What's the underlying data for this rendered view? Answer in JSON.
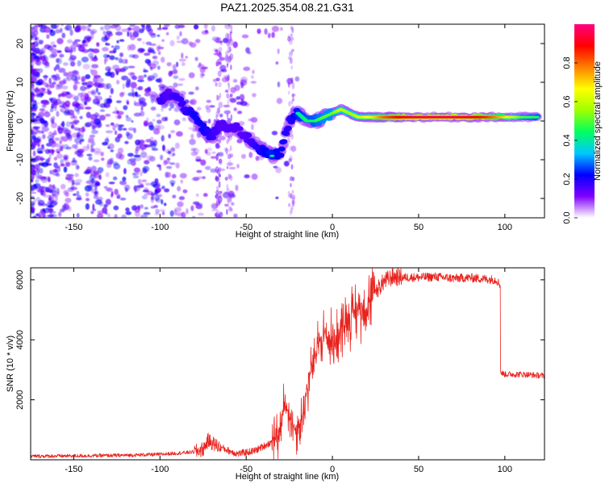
{
  "chart_data": [
    {
      "type": "heatmap",
      "title": "PAZ1.2025.354.08.21.G31",
      "xlabel": "Height of straight line (km)",
      "ylabel": "Frequency (Hz)",
      "xlim": [
        -175,
        123
      ],
      "ylim": [
        -25,
        25
      ],
      "xticks": [
        -150,
        -100,
        -50,
        0,
        50,
        100
      ],
      "yticks": [
        -20,
        -10,
        0,
        10,
        20
      ],
      "colorbar": {
        "label": "Normalized spectral amplitude",
        "range": [
          0,
          1
        ],
        "ticks": [
          0.0,
          0.2,
          0.4,
          0.6,
          0.8
        ],
        "tick_labels": [
          "0.0",
          "0.2",
          "0.4",
          "0.6",
          "0.8"
        ],
        "colormap": [
          "#ffffff",
          "#8000ff",
          "#0000ff",
          "#00c8ff",
          "#00ff60",
          "#a0ff00",
          "#ffff00",
          "#ff8000",
          "#ff0000",
          "#ff0080"
        ]
      },
      "ridge": [
        {
          "x": -100,
          "y": 5,
          "a": 0.3
        },
        {
          "x": -95,
          "y": 7,
          "a": 0.25
        },
        {
          "x": -90,
          "y": 6,
          "a": 0.3
        },
        {
          "x": -85,
          "y": 3,
          "a": 0.3
        },
        {
          "x": -80,
          "y": 1,
          "a": 0.35
        },
        {
          "x": -75,
          "y": -2,
          "a": 0.35
        },
        {
          "x": -70,
          "y": -4,
          "a": 0.3
        },
        {
          "x": -65,
          "y": -1,
          "a": 0.25
        },
        {
          "x": -60,
          "y": -2,
          "a": 0.25
        },
        {
          "x": -55,
          "y": -2,
          "a": 0.25
        },
        {
          "x": -50,
          "y": -4,
          "a": 0.25
        },
        {
          "x": -45,
          "y": -6,
          "a": 0.3
        },
        {
          "x": -40,
          "y": -8,
          "a": 0.35
        },
        {
          "x": -35,
          "y": -9,
          "a": 0.4
        },
        {
          "x": -30,
          "y": -8,
          "a": 0.35
        },
        {
          "x": -25,
          "y": 0,
          "a": 0.3
        },
        {
          "x": -20,
          "y": 2,
          "a": 0.4
        },
        {
          "x": -15,
          "y": 0,
          "a": 0.45
        },
        {
          "x": -10,
          "y": 0,
          "a": 0.45
        },
        {
          "x": -5,
          "y": 1,
          "a": 0.5
        },
        {
          "x": 0,
          "y": 2,
          "a": 0.5
        },
        {
          "x": 5,
          "y": 3,
          "a": 0.6
        },
        {
          "x": 10,
          "y": 2,
          "a": 0.55
        },
        {
          "x": 15,
          "y": 1,
          "a": 0.6
        },
        {
          "x": 20,
          "y": 1,
          "a": 0.65
        },
        {
          "x": 25,
          "y": 1,
          "a": 0.7
        },
        {
          "x": 30,
          "y": 1,
          "a": 0.8
        },
        {
          "x": 35,
          "y": 1,
          "a": 0.85
        },
        {
          "x": 40,
          "y": 1,
          "a": 0.9
        },
        {
          "x": 50,
          "y": 1,
          "a": 0.95
        },
        {
          "x": 60,
          "y": 1,
          "a": 0.95
        },
        {
          "x": 70,
          "y": 1,
          "a": 0.95
        },
        {
          "x": 80,
          "y": 1,
          "a": 0.92
        },
        {
          "x": 90,
          "y": 1,
          "a": 0.85
        },
        {
          "x": 100,
          "y": 1,
          "a": 0.7
        },
        {
          "x": 110,
          "y": 1,
          "a": 0.5
        },
        {
          "x": 120,
          "y": 1,
          "a": 0.45
        }
      ]
    },
    {
      "type": "line",
      "xlabel": "Height of straight line (km)",
      "ylabel": "SNR (10 * v/v)",
      "xlim": [
        -175,
        123
      ],
      "ylim": [
        0,
        6400
      ],
      "xticks": [
        -150,
        -100,
        -50,
        0,
        50,
        100
      ],
      "yticks": [
        2000,
        4000,
        6000
      ],
      "color": "#e8231e",
      "x": [
        -175,
        -150,
        -120,
        -100,
        -80,
        -75,
        -72,
        -68,
        -60,
        -55,
        -45,
        -35,
        -30,
        -28,
        -25,
        -22,
        -18,
        -15,
        -12,
        -10,
        -8,
        -5,
        0,
        5,
        10,
        15,
        20,
        25,
        30,
        35,
        40,
        50,
        60,
        70,
        80,
        90,
        95,
        97,
        98,
        100,
        110,
        123
      ],
      "y": [
        120,
        130,
        150,
        180,
        260,
        350,
        650,
        500,
        300,
        200,
        300,
        600,
        900,
        1900,
        1600,
        1000,
        1300,
        2200,
        3100,
        3300,
        4000,
        4200,
        3900,
        4400,
        4800,
        5000,
        5200,
        5600,
        5950,
        6100,
        6080,
        6080,
        6100,
        6050,
        6070,
        6020,
        6000,
        5850,
        2900,
        2850,
        2850,
        2800
      ]
    }
  ]
}
